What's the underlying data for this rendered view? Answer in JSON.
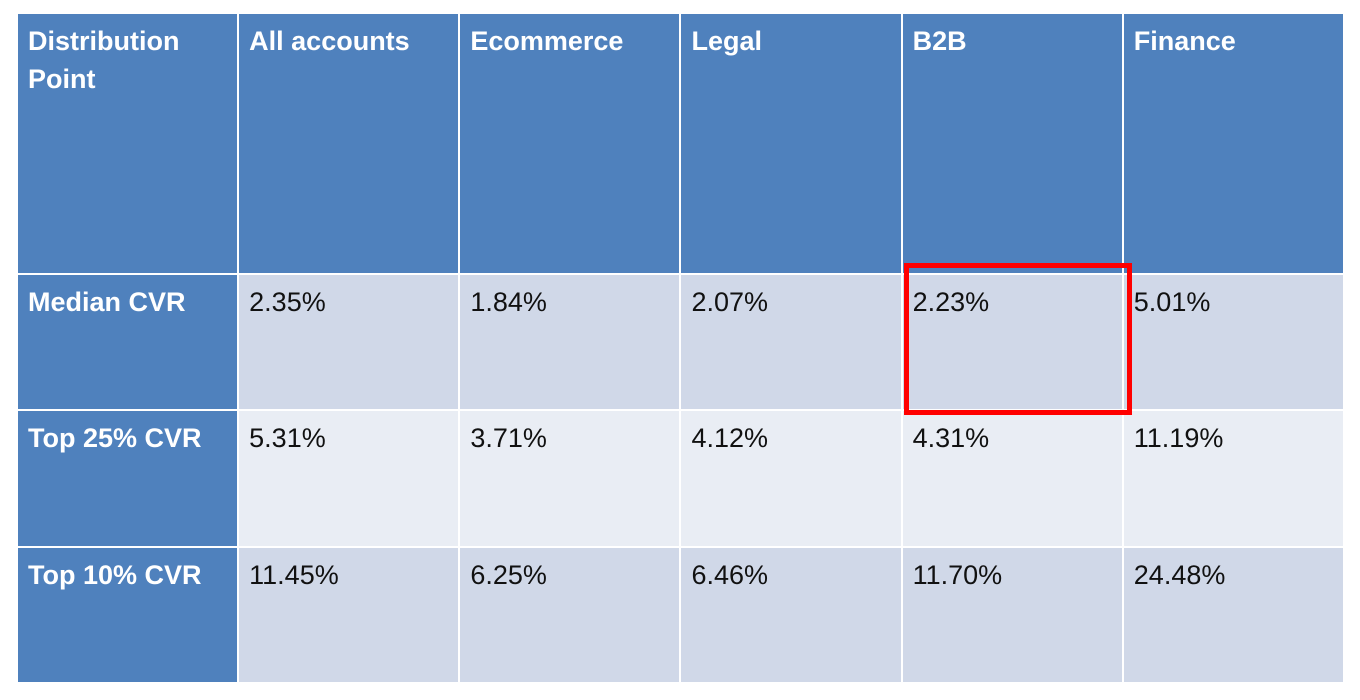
{
  "chart_data": {
    "type": "table",
    "columns": [
      "Distribution Point",
      "All accounts",
      "Ecommerce",
      "Legal",
      "B2B",
      "Finance"
    ],
    "rows": [
      {
        "label": "Median CVR",
        "values": [
          "2.35%",
          "1.84%",
          "2.07%",
          "2.23%",
          "5.01%"
        ]
      },
      {
        "label": "Top 25% CVR",
        "values": [
          "5.31%",
          "3.71%",
          "4.12%",
          "4.31%",
          "11.19%"
        ]
      },
      {
        "label": "Top 10% CVR",
        "values": [
          "11.45%",
          "6.25%",
          "6.46%",
          "11.70%",
          "24.48%"
        ]
      }
    ],
    "highlight": {
      "row": "Median CVR",
      "column": "B2B",
      "color": "#ff0000"
    }
  },
  "colors": {
    "header_bg": "#4f81bd",
    "row_odd_bg": "#d0d8e8",
    "row_even_bg": "#e9edf4",
    "highlight": "#ff0000"
  }
}
